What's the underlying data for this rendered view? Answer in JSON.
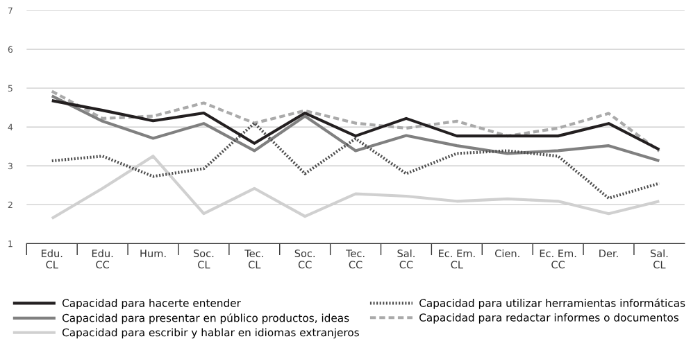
{
  "chart_data": {
    "type": "line",
    "categories": [
      "Edu.\nCL",
      "Edu.\nCC",
      "Hum.",
      "Soc.\nCL",
      "Tec.\nCL",
      "Soc.\nCC",
      "Tec.\nCC",
      "Sal.\nCC",
      "Ec. Em.\nCL",
      "Cien.",
      "Ec. Em.\nCC",
      "Der.",
      "Sal.\nCL"
    ],
    "series": [
      {
        "name": "Capacidad para hacerte entender",
        "color": "#231f20",
        "line_style": "solid",
        "values": [
          4.68,
          4.43,
          4.16,
          4.36,
          3.58,
          4.36,
          3.77,
          4.22,
          3.77,
          3.77,
          3.77,
          4.09,
          3.42
        ]
      },
      {
        "name": "Capacidad para utilizar herramientas informáticas",
        "color": "#4d4d4d",
        "line_style": "dotted",
        "values": [
          3.13,
          3.25,
          2.73,
          2.93,
          4.1,
          2.8,
          3.7,
          2.8,
          3.32,
          3.39,
          3.25,
          2.17,
          2.55
        ]
      },
      {
        "name": "Capacidad para presentar en público productos, ideas",
        "color": "#808080",
        "line_style": "solid",
        "values": [
          4.8,
          4.15,
          3.71,
          4.09,
          3.39,
          4.28,
          3.39,
          3.78,
          3.52,
          3.32,
          3.39,
          3.52,
          3.13
        ]
      },
      {
        "name": "Capacidad para redactar informes o documentos",
        "color": "#aaaaaa",
        "line_style": "dashed",
        "values": [
          4.92,
          4.22,
          4.28,
          4.62,
          4.1,
          4.42,
          4.1,
          3.97,
          4.15,
          3.77,
          3.97,
          4.35,
          3.38
        ]
      },
      {
        "name": "Capacidad para escribir y hablar en idiomas extranjeros",
        "color": "#d0d0d0",
        "line_style": "solid",
        "values": [
          1.65,
          2.42,
          3.25,
          1.77,
          2.42,
          1.7,
          2.28,
          2.22,
          2.09,
          2.15,
          2.09,
          1.77,
          2.09
        ]
      }
    ],
    "ylim": [
      1,
      7
    ],
    "yticks": [
      1,
      2,
      3,
      4,
      5,
      6,
      7
    ],
    "grid": "y",
    "legend": "bottom",
    "marker": "none"
  }
}
